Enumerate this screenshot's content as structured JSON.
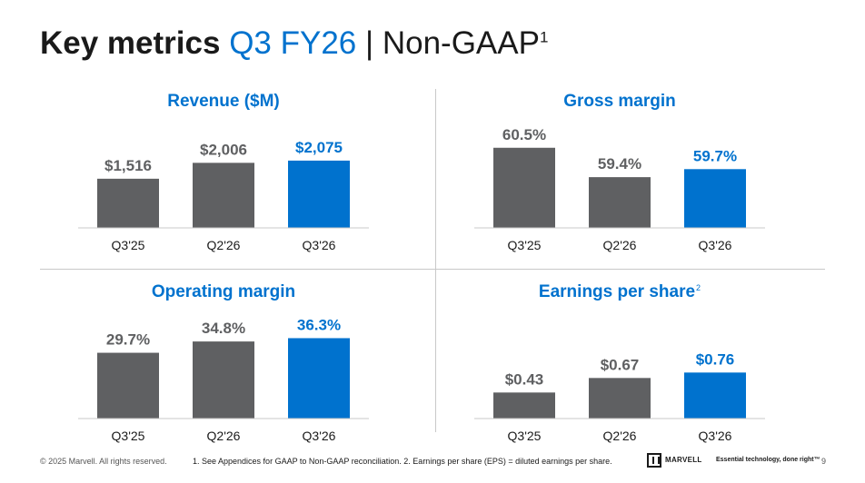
{
  "title": {
    "bold": "Key metrics",
    "period": "Q3 FY26",
    "separator": "|",
    "basis": "Non-GAAP",
    "footnote_mark": "1"
  },
  "colors": {
    "accent": "#0072ce",
    "bar_prior": "#5f6062",
    "bar_current": "#0072ce",
    "label_prior": "#5f6062",
    "label_current": "#0072ce",
    "baseline": "#c8c8c8"
  },
  "chart_data": [
    {
      "type": "bar",
      "title": "Revenue ($M)",
      "title_sup": "",
      "categories": [
        "Q3'25",
        "Q2'26",
        "Q3'26"
      ],
      "values": [
        1516,
        2006,
        2075
      ],
      "value_labels": [
        "$1,516",
        "$2,006",
        "$2,075"
      ],
      "ylim": [
        0,
        2800
      ],
      "highlight_index": 2
    },
    {
      "type": "bar",
      "title": "Gross margin",
      "title_sup": "",
      "categories": [
        "Q3'25",
        "Q2'26",
        "Q3'26"
      ],
      "values": [
        60.5,
        59.4,
        59.7
      ],
      "value_labels": [
        "60.5%",
        "59.4%",
        "59.7%"
      ],
      "ylim": [
        57.5,
        60.9
      ],
      "highlight_index": 2
    },
    {
      "type": "bar",
      "title": "Operating margin",
      "title_sup": "",
      "categories": [
        "Q3'25",
        "Q2'26",
        "Q3'26"
      ],
      "values": [
        29.7,
        34.8,
        36.3
      ],
      "value_labels": [
        "29.7%",
        "34.8%",
        "36.3%"
      ],
      "ylim": [
        0,
        41
      ],
      "highlight_index": 2
    },
    {
      "type": "bar",
      "title": "Earnings per share",
      "title_sup": "2",
      "categories": [
        "Q3'25",
        "Q2'26",
        "Q3'26"
      ],
      "values": [
        0.43,
        0.67,
        0.76
      ],
      "value_labels": [
        "$0.43",
        "$0.67",
        "$0.76"
      ],
      "ylim": [
        0,
        1.5
      ],
      "highlight_index": 2
    }
  ],
  "footer": {
    "copyright": "© 2025 Marvell. All rights reserved.",
    "notes": "1. See Appendices for GAAP to Non-GAAP reconciliation. 2. Earnings per share (EPS) = diluted earnings per share.",
    "logo_text": "MARVELL",
    "tagline": "Essential technology, done right™",
    "page_number": "9"
  }
}
